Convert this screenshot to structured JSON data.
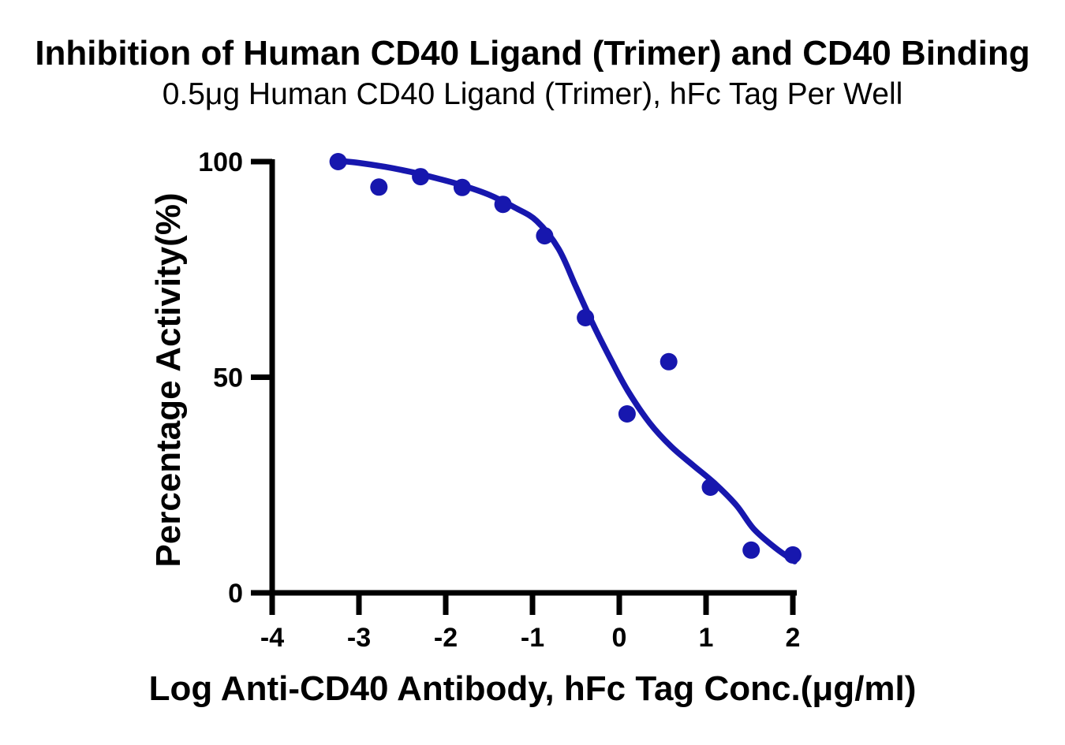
{
  "chart_data": {
    "type": "scatter",
    "title": "Inhibition of Human CD40 Ligand (Trimer) and CD40 Binding",
    "subtitle": "0.5μg Human CD40 Ligand (Trimer), hFc Tag Per Well",
    "xlabel": "Log Anti-CD40 Antibody, hFc Tag Conc.(μg/ml)",
    "ylabel": "Percentage Activity(%)",
    "xlim": [
      -4,
      2
    ],
    "ylim": [
      0,
      100
    ],
    "x_ticks": [
      -4,
      -3,
      -2,
      -1,
      0,
      1,
      2
    ],
    "y_ticks": [
      0,
      50,
      100
    ],
    "grid": false,
    "legend_position": "none",
    "axis_color": "#000000",
    "background_color": "#ffffff",
    "series": [
      {
        "name": "measured-points",
        "type": "scatter",
        "color": "#1717ae",
        "points": [
          [
            -3.24,
            100.0
          ],
          [
            -2.77,
            94.1
          ],
          [
            -2.29,
            96.5
          ],
          [
            -1.81,
            94.0
          ],
          [
            -1.34,
            90.1
          ],
          [
            -0.86,
            82.8
          ],
          [
            -0.39,
            63.8
          ],
          [
            0.09,
            41.5
          ],
          [
            0.57,
            53.6
          ],
          [
            1.05,
            24.5
          ],
          [
            1.52,
            9.9
          ],
          [
            2.0,
            8.8
          ]
        ]
      },
      {
        "name": "fitted-curve",
        "type": "line",
        "color": "#1717ae",
        "points": [
          [
            -3.24,
            100.2
          ],
          [
            -3.0,
            99.7
          ],
          [
            -2.7,
            98.8
          ],
          [
            -2.4,
            97.6
          ],
          [
            -2.1,
            96.1
          ],
          [
            -1.81,
            94.5
          ],
          [
            -1.5,
            92.3
          ],
          [
            -1.2,
            89.3
          ],
          [
            -0.95,
            86.2
          ],
          [
            -0.7,
            79.8
          ],
          [
            -0.5,
            71.0
          ],
          [
            -0.3,
            62.2
          ],
          [
            -0.1,
            54.2
          ],
          [
            0.1,
            46.8
          ],
          [
            0.35,
            39.4
          ],
          [
            0.6,
            33.9
          ],
          [
            0.85,
            29.6
          ],
          [
            1.1,
            25.4
          ],
          [
            1.35,
            20.3
          ],
          [
            1.55,
            14.8
          ],
          [
            1.8,
            10.4
          ],
          [
            2.02,
            7.3
          ]
        ]
      }
    ]
  }
}
